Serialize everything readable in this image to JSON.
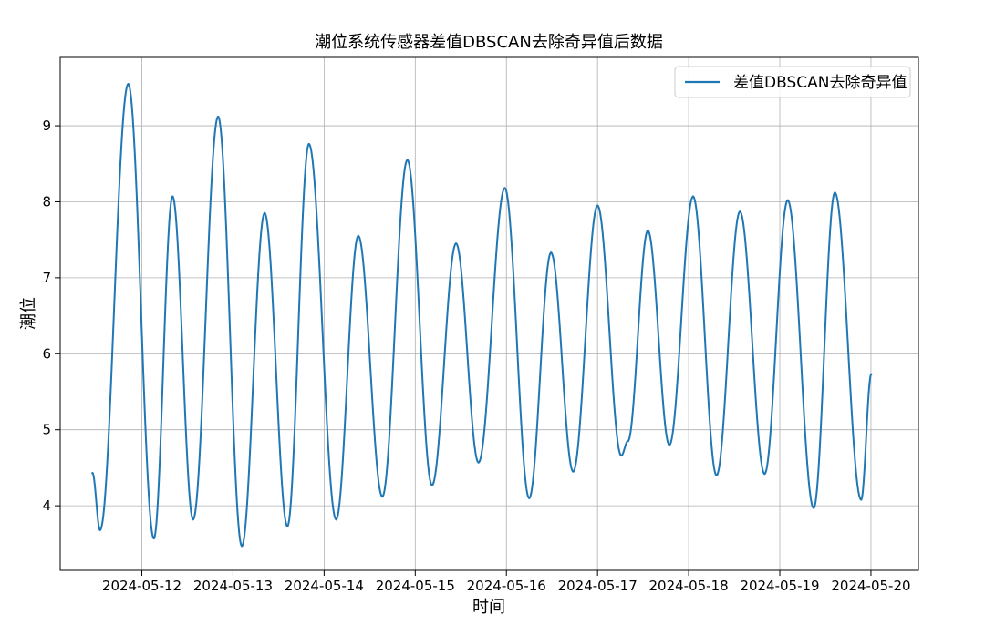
{
  "chart_data": {
    "type": "line",
    "title": "潮位系统传感器差值DBSCAN去除奇异值后数据",
    "xlabel": "时间",
    "ylabel": "潮位",
    "x_tick_labels": [
      "2024-05-12",
      "2024-05-13",
      "2024-05-14",
      "2024-05-15",
      "2024-05-16",
      "2024-05-17",
      "2024-05-18",
      "2024-05-19",
      "2024-05-20"
    ],
    "y_ticks": [
      4,
      5,
      6,
      7,
      8,
      9
    ],
    "xlim": [
      "2024-05-11 02:30",
      "2024-05-20 12:30"
    ],
    "ylim": [
      3.15,
      9.9
    ],
    "grid": true,
    "legend_position": "top-right",
    "color": "#1f77b4",
    "series": [
      {
        "name": "差值DBSCAN去除奇异值",
        "points": [
          [
            "2024-05-11 11:00",
            4.43
          ],
          [
            "2024-05-11 13:00",
            3.68
          ],
          [
            "2024-05-11 20:25",
            9.55
          ],
          [
            "2024-05-12 03:10",
            3.57
          ],
          [
            "2024-05-12 08:05",
            8.07
          ],
          [
            "2024-05-12 13:30",
            3.82
          ],
          [
            "2024-05-12 20:05",
            9.12
          ],
          [
            "2024-05-13 02:20",
            3.47
          ],
          [
            "2024-05-13 08:20",
            7.85
          ],
          [
            "2024-05-13 14:20",
            3.73
          ],
          [
            "2024-05-13 20:00",
            8.76
          ],
          [
            "2024-05-14 03:10",
            3.82
          ],
          [
            "2024-05-14 09:00",
            7.55
          ],
          [
            "2024-05-14 15:20",
            4.12
          ],
          [
            "2024-05-14 21:55",
            8.55
          ],
          [
            "2024-05-15 04:25",
            4.27
          ],
          [
            "2024-05-15 10:45",
            7.45
          ],
          [
            "2024-05-15 16:40",
            4.57
          ],
          [
            "2024-05-15 23:35",
            8.18
          ],
          [
            "2024-05-16 06:00",
            4.1
          ],
          [
            "2024-05-16 11:45",
            7.33
          ],
          [
            "2024-05-16 17:35",
            4.45
          ],
          [
            "2024-05-17 00:00",
            7.95
          ],
          [
            "2024-05-17 06:15",
            4.66
          ],
          [
            "2024-05-17 08:00",
            4.85
          ],
          [
            "2024-05-17 13:15",
            7.62
          ],
          [
            "2024-05-17 18:55",
            4.8
          ],
          [
            "2024-05-18 01:10",
            8.07
          ],
          [
            "2024-05-18 07:20",
            4.4
          ],
          [
            "2024-05-18 13:30",
            7.87
          ],
          [
            "2024-05-18 20:00",
            4.42
          ],
          [
            "2024-05-19 02:05",
            8.02
          ],
          [
            "2024-05-19 08:55",
            3.97
          ],
          [
            "2024-05-19 14:30",
            8.12
          ],
          [
            "2024-05-19 21:25",
            4.08
          ],
          [
            "2024-05-20 00:05",
            5.73
          ]
        ]
      }
    ]
  }
}
